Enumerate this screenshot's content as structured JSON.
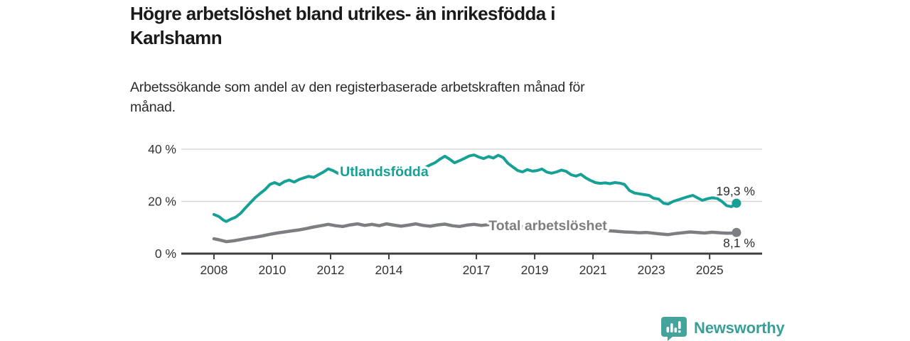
{
  "header": {
    "title": "Högre arbetslöshet bland utrikes- än inrikesfödda i\nKarlshamn",
    "subtitle": "Arbetssökande som andel av den registerbaserade arbetskraften månad för\nmånad."
  },
  "colors": {
    "title_text": "#1a1a1a",
    "subtitle_text": "#2b2b2b",
    "axis": "#3f3f3f",
    "axis_label": "#333333",
    "grid": "#d8d8d8",
    "value_label": "#2e2e2e",
    "series_utlandsfodda": "#17a095",
    "series_total": "#7d7e82",
    "halo": "#ffffff",
    "brand_teal": "#44a39c"
  },
  "chart_data": {
    "type": "line",
    "title": "Högre arbetslöshet bland utrikes- än inrikesfödda i Karlshamn",
    "subtitle": "Arbetssökande som andel av den registerbaserade arbetskraften månad för månad.",
    "xlabel": "",
    "ylabel": "",
    "xlim": [
      2006.88,
      2026.8
    ],
    "ylim": [
      0,
      40
    ],
    "grid": "horizontal",
    "legend_position": "inline-labels",
    "x_ticks": [
      2008,
      2010,
      2012,
      2014,
      2017,
      2019,
      2021,
      2023,
      2025
    ],
    "y_ticks": [
      {
        "value": 0,
        "label": "0 %"
      },
      {
        "value": 20,
        "label": "20 %"
      },
      {
        "value": 40,
        "label": "40 %"
      }
    ],
    "series": [
      {
        "name": "Utlandsfödda",
        "color": "#17a095",
        "stroke_width": 4,
        "end_value": 19.3,
        "end_label": "19,3 %",
        "inline_label": {
          "text": "Utlandsfödda",
          "x": 2012.32,
          "y": 31.6
        },
        "points": [
          [
            2008.0,
            15.0
          ],
          [
            2008.17,
            14.2
          ],
          [
            2008.33,
            12.8
          ],
          [
            2008.42,
            12.3
          ],
          [
            2008.58,
            13.2
          ],
          [
            2008.75,
            14.0
          ],
          [
            2008.92,
            15.5
          ],
          [
            2009.08,
            17.5
          ],
          [
            2009.25,
            19.5
          ],
          [
            2009.42,
            21.5
          ],
          [
            2009.58,
            23.0
          ],
          [
            2009.75,
            24.5
          ],
          [
            2009.92,
            26.5
          ],
          [
            2010.08,
            27.2
          ],
          [
            2010.25,
            26.4
          ],
          [
            2010.42,
            27.6
          ],
          [
            2010.58,
            28.2
          ],
          [
            2010.75,
            27.4
          ],
          [
            2010.92,
            28.4
          ],
          [
            2011.08,
            29.0
          ],
          [
            2011.25,
            29.6
          ],
          [
            2011.42,
            29.2
          ],
          [
            2011.58,
            30.2
          ],
          [
            2011.75,
            31.2
          ],
          [
            2011.92,
            32.5
          ],
          [
            2012.08,
            31.8
          ],
          [
            2012.25,
            30.8
          ],
          [
            2012.42,
            30.4
          ],
          [
            2012.58,
            31.0
          ],
          [
            2012.75,
            31.6
          ],
          [
            2012.92,
            31.2
          ],
          [
            2013.08,
            31.9
          ],
          [
            2013.25,
            32.4
          ],
          [
            2013.42,
            31.8
          ],
          [
            2013.58,
            31.3
          ],
          [
            2013.75,
            31.0
          ],
          [
            2013.92,
            31.6
          ],
          [
            2014.08,
            31.2
          ],
          [
            2014.25,
            30.7
          ],
          [
            2014.42,
            30.3
          ],
          [
            2014.58,
            30.6
          ],
          [
            2014.75,
            31.3
          ],
          [
            2014.92,
            31.8
          ],
          [
            2015.08,
            32.3
          ],
          [
            2015.25,
            33.0
          ],
          [
            2015.42,
            34.0
          ],
          [
            2015.58,
            34.8
          ],
          [
            2015.75,
            36.2
          ],
          [
            2015.92,
            37.3
          ],
          [
            2016.08,
            36.2
          ],
          [
            2016.25,
            34.8
          ],
          [
            2016.42,
            35.6
          ],
          [
            2016.58,
            36.4
          ],
          [
            2016.75,
            37.4
          ],
          [
            2016.92,
            37.8
          ],
          [
            2017.08,
            37.0
          ],
          [
            2017.25,
            36.4
          ],
          [
            2017.42,
            37.2
          ],
          [
            2017.58,
            36.6
          ],
          [
            2017.75,
            37.7
          ],
          [
            2017.92,
            36.8
          ],
          [
            2018.08,
            34.6
          ],
          [
            2018.25,
            33.2
          ],
          [
            2018.42,
            31.8
          ],
          [
            2018.58,
            31.3
          ],
          [
            2018.75,
            32.2
          ],
          [
            2018.92,
            31.6
          ],
          [
            2019.08,
            31.8
          ],
          [
            2019.25,
            32.4
          ],
          [
            2019.42,
            31.2
          ],
          [
            2019.58,
            30.8
          ],
          [
            2019.75,
            31.3
          ],
          [
            2019.92,
            32.0
          ],
          [
            2020.08,
            31.5
          ],
          [
            2020.25,
            30.2
          ],
          [
            2020.42,
            29.7
          ],
          [
            2020.58,
            30.4
          ],
          [
            2020.75,
            29.0
          ],
          [
            2020.92,
            28.0
          ],
          [
            2021.08,
            27.2
          ],
          [
            2021.25,
            26.9
          ],
          [
            2021.42,
            27.1
          ],
          [
            2021.58,
            26.8
          ],
          [
            2021.75,
            27.2
          ],
          [
            2021.92,
            27.0
          ],
          [
            2022.08,
            26.5
          ],
          [
            2022.25,
            24.2
          ],
          [
            2022.42,
            23.2
          ],
          [
            2022.58,
            22.9
          ],
          [
            2022.75,
            22.6
          ],
          [
            2022.92,
            22.3
          ],
          [
            2023.08,
            21.2
          ],
          [
            2023.25,
            20.9
          ],
          [
            2023.42,
            19.3
          ],
          [
            2023.58,
            19.0
          ],
          [
            2023.75,
            20.0
          ],
          [
            2023.92,
            20.6
          ],
          [
            2024.08,
            21.2
          ],
          [
            2024.25,
            21.8
          ],
          [
            2024.42,
            22.3
          ],
          [
            2024.58,
            21.4
          ],
          [
            2024.75,
            20.4
          ],
          [
            2024.92,
            21.0
          ],
          [
            2025.08,
            21.4
          ],
          [
            2025.25,
            21.2
          ],
          [
            2025.42,
            20.0
          ],
          [
            2025.58,
            18.4
          ],
          [
            2025.75,
            18.0
          ],
          [
            2025.92,
            19.3
          ]
        ]
      },
      {
        "name": "Total arbetslöshet",
        "color": "#7d7e82",
        "stroke_width": 4.5,
        "end_value": 8.1,
        "end_label": "8,1 %",
        "inline_label": {
          "text": "Total arbetslöshet",
          "x": 2017.42,
          "y": 10.9
        },
        "points": [
          [
            2008.0,
            5.7
          ],
          [
            2008.17,
            5.3
          ],
          [
            2008.42,
            4.6
          ],
          [
            2008.67,
            4.9
          ],
          [
            2008.92,
            5.4
          ],
          [
            2009.17,
            5.9
          ],
          [
            2009.42,
            6.3
          ],
          [
            2009.67,
            6.8
          ],
          [
            2009.92,
            7.4
          ],
          [
            2010.17,
            7.9
          ],
          [
            2010.42,
            8.3
          ],
          [
            2010.67,
            8.7
          ],
          [
            2010.92,
            9.1
          ],
          [
            2011.17,
            9.6
          ],
          [
            2011.42,
            10.2
          ],
          [
            2011.67,
            10.7
          ],
          [
            2011.92,
            11.2
          ],
          [
            2012.17,
            10.7
          ],
          [
            2012.42,
            10.4
          ],
          [
            2012.67,
            11.0
          ],
          [
            2012.92,
            11.4
          ],
          [
            2013.17,
            10.8
          ],
          [
            2013.42,
            11.2
          ],
          [
            2013.67,
            10.7
          ],
          [
            2013.92,
            11.4
          ],
          [
            2014.17,
            10.9
          ],
          [
            2014.42,
            10.5
          ],
          [
            2014.67,
            10.9
          ],
          [
            2014.92,
            11.4
          ],
          [
            2015.17,
            10.8
          ],
          [
            2015.42,
            10.5
          ],
          [
            2015.67,
            11.0
          ],
          [
            2015.92,
            11.3
          ],
          [
            2016.17,
            10.7
          ],
          [
            2016.42,
            10.4
          ],
          [
            2016.67,
            10.9
          ],
          [
            2016.92,
            11.2
          ],
          [
            2017.17,
            10.8
          ],
          [
            2017.42,
            11.1
          ],
          [
            2017.67,
            10.7
          ],
          [
            2017.92,
            10.9
          ],
          [
            2018.33,
            10.4
          ],
          [
            2018.75,
            10.1
          ],
          [
            2019.25,
            10.0
          ],
          [
            2019.75,
            9.7
          ],
          [
            2020.25,
            9.4
          ],
          [
            2020.75,
            9.1
          ],
          [
            2021.25,
            8.9
          ],
          [
            2021.75,
            8.6
          ],
          [
            2022.08,
            8.3
          ],
          [
            2022.33,
            8.2
          ],
          [
            2022.58,
            8.0
          ],
          [
            2022.83,
            8.1
          ],
          [
            2023.08,
            7.8
          ],
          [
            2023.33,
            7.5
          ],
          [
            2023.58,
            7.3
          ],
          [
            2023.83,
            7.7
          ],
          [
            2024.08,
            8.0
          ],
          [
            2024.33,
            8.3
          ],
          [
            2024.58,
            8.1
          ],
          [
            2024.83,
            7.9
          ],
          [
            2025.08,
            8.2
          ],
          [
            2025.33,
            8.0
          ],
          [
            2025.58,
            7.8
          ],
          [
            2025.83,
            7.9
          ],
          [
            2025.92,
            8.1
          ]
        ]
      }
    ]
  },
  "footer": {
    "brand": "Newsworthy"
  }
}
